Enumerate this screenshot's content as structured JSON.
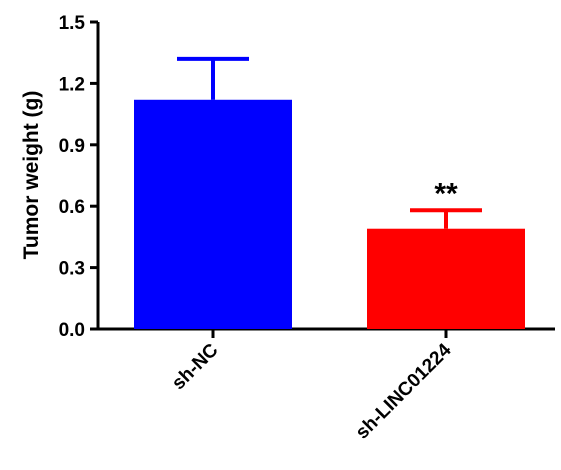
{
  "chart_data": {
    "type": "bar",
    "title": "",
    "xlabel": "",
    "ylabel": "Tumor weight (g)",
    "ylim": [
      0,
      1.5
    ],
    "yticks": [
      "0.0",
      "0.3",
      "0.6",
      "0.9",
      "1.2",
      "1.5"
    ],
    "grid": false,
    "categories": [
      "sh-NC",
      "sh-LINC01224"
    ],
    "values": [
      1.12,
      0.49
    ],
    "errors": [
      0.2,
      0.09
    ],
    "colors": [
      "#0000ff",
      "#ff0000"
    ],
    "annotations": [
      "",
      "**"
    ]
  }
}
